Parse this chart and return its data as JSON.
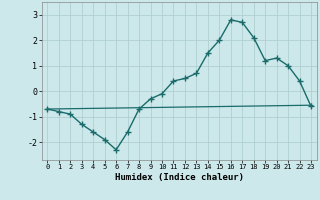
{
  "xlabel": "Humidex (Indice chaleur)",
  "ylabel": "",
  "background_color": "#cce8ea",
  "grid_color": "#b0cfd2",
  "line_color": "#1a6b6b",
  "xlim": [
    -0.5,
    23.5
  ],
  "ylim": [
    -2.7,
    3.5
  ],
  "xticks": [
    0,
    1,
    2,
    3,
    4,
    5,
    6,
    7,
    8,
    9,
    10,
    11,
    12,
    13,
    14,
    15,
    16,
    17,
    18,
    19,
    20,
    21,
    22,
    23
  ],
  "yticks": [
    -2,
    -1,
    0,
    1,
    2,
    3
  ],
  "curve1_x": [
    0,
    1,
    2,
    3,
    4,
    5,
    6,
    7,
    8,
    9,
    10,
    11,
    12,
    13,
    14,
    15,
    16,
    17,
    18,
    19,
    20,
    21,
    22,
    23
  ],
  "curve1_y": [
    -0.7,
    -0.8,
    -0.9,
    -1.3,
    -1.6,
    -1.9,
    -2.3,
    -1.6,
    -0.7,
    -0.3,
    -0.1,
    0.4,
    0.5,
    0.7,
    1.5,
    2.0,
    2.8,
    2.7,
    2.1,
    1.2,
    1.3,
    1.0,
    0.4,
    -0.6
  ],
  "curve2_x": [
    0,
    23
  ],
  "curve2_y": [
    -0.7,
    -0.55
  ]
}
